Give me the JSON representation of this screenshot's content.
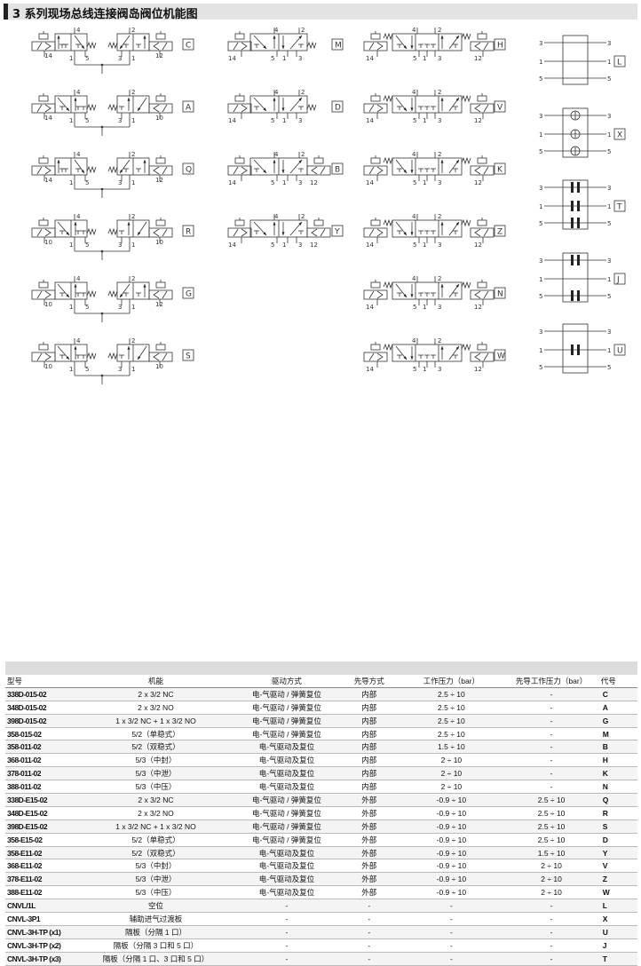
{
  "title": "3 系列现场总线连接阀岛阀位机能图",
  "diagrams": {
    "dual_3_2": [
      {
        "code": "C",
        "left_pilot": "14",
        "right_pilot": "12",
        "ports": [
          "4",
          "1",
          "5",
          "2",
          "3",
          "1"
        ]
      },
      {
        "code": "A",
        "left_pilot": "14",
        "right_pilot": "10",
        "ports": [
          "4",
          "1",
          "5",
          "2",
          "3",
          "1"
        ]
      },
      {
        "code": "Q",
        "left_pilot": "14",
        "right_pilot": "12",
        "ports": [
          "4",
          "1",
          "5",
          "2",
          "3",
          "1"
        ]
      },
      {
        "code": "R",
        "left_pilot": "10",
        "right_pilot": "10",
        "ports": [
          "4",
          "1",
          "5",
          "2",
          "3",
          "1"
        ]
      },
      {
        "code": "G",
        "left_pilot": "10",
        "right_pilot": "12",
        "ports": [
          "4",
          "1",
          "5",
          "2",
          "3",
          "1"
        ]
      },
      {
        "code": "S",
        "left_pilot": "10",
        "right_pilot": "10",
        "ports": [
          "4",
          "1",
          "5",
          "2",
          "3",
          "1"
        ]
      }
    ],
    "valve_5_2": [
      {
        "code": "M",
        "left_pilot": "14",
        "right_pilot": "",
        "ports": [
          "4",
          "2",
          "5",
          "1",
          "3"
        ]
      },
      {
        "code": "D",
        "left_pilot": "14",
        "right_pilot": "",
        "ports": [
          "4",
          "2",
          "5",
          "1",
          "3"
        ]
      },
      {
        "code": "B",
        "left_pilot": "14",
        "right_pilot": "12",
        "ports": [
          "4",
          "2",
          "5",
          "1",
          "3"
        ]
      },
      {
        "code": "Y",
        "left_pilot": "14",
        "right_pilot": "12",
        "ports": [
          "4",
          "2",
          "5",
          "1",
          "3"
        ]
      }
    ],
    "valve_5_3": [
      {
        "code": "H",
        "left_pilot": "14",
        "right_pilot": "12",
        "ports": [
          "4",
          "2",
          "5",
          "1",
          "3"
        ]
      },
      {
        "code": "V",
        "left_pilot": "14",
        "right_pilot": "12",
        "ports": [
          "4",
          "2",
          "5",
          "1",
          "3"
        ]
      },
      {
        "code": "K",
        "left_pilot": "14",
        "right_pilot": "12",
        "ports": [
          "4",
          "2",
          "5",
          "1",
          "3"
        ]
      },
      {
        "code": "Z",
        "left_pilot": "14",
        "right_pilot": "12",
        "ports": [
          "4",
          "2",
          "5",
          "1",
          "3"
        ]
      },
      {
        "code": "N",
        "left_pilot": "14",
        "right_pilot": "12",
        "ports": [
          "4",
          "2",
          "5",
          "1",
          "3"
        ]
      },
      {
        "code": "W",
        "left_pilot": "14",
        "right_pilot": "12",
        "ports": [
          "4",
          "2",
          "5",
          "1",
          "3"
        ]
      }
    ],
    "blocks": [
      {
        "code": "L",
        "ports": [
          "3",
          "1",
          "5"
        ],
        "plugs": [
          false,
          false,
          false
        ],
        "valves": false
      },
      {
        "code": "X",
        "ports": [
          "3",
          "1",
          "5"
        ],
        "plugs": [
          false,
          false,
          false
        ],
        "valves": true
      },
      {
        "code": "T",
        "ports": [
          "3",
          "1",
          "5"
        ],
        "plugs": [
          true,
          true,
          true
        ],
        "valves": false
      },
      {
        "code": "J",
        "ports": [
          "3",
          "1",
          "5"
        ],
        "plugs": [
          true,
          false,
          true
        ],
        "valves": false
      },
      {
        "code": "U",
        "ports": [
          "3",
          "1",
          "5"
        ],
        "plugs": [
          false,
          true,
          false
        ],
        "valves": false
      }
    ]
  },
  "table": {
    "headers": [
      "型号",
      "机能",
      "驱动方式",
      "先导方式",
      "工作压力（bar）",
      "先导工作压力（bar）",
      "代号"
    ],
    "rows": [
      [
        "338D-015-02",
        "2 x 3/2 NC",
        "电-气驱动 / 弹簧复位",
        "内部",
        "2.5 ÷ 10",
        "-",
        "C"
      ],
      [
        "348D-015-02",
        "2 x 3/2 NO",
        "电-气驱动 / 弹簧复位",
        "内部",
        "2.5 ÷ 10",
        "-",
        "A"
      ],
      [
        "398D-015-02",
        "1 x 3/2 NC + 1 x 3/2 NO",
        "电-气驱动 / 弹簧复位",
        "内部",
        "2.5 ÷ 10",
        "-",
        "G"
      ],
      [
        "358-015-02",
        "5/2（单稳式）",
        "电-气驱动 / 弹簧复位",
        "内部",
        "2.5 ÷ 10",
        "-",
        "M"
      ],
      [
        "358-011-02",
        "5/2（双稳式）",
        "电-气驱动及复位",
        "内部",
        "1.5 ÷ 10",
        "-",
        "B"
      ],
      [
        "368-011-02",
        "5/3（中封）",
        "电-气驱动及复位",
        "内部",
        "2 ÷ 10",
        "-",
        "H"
      ],
      [
        "378-011-02",
        "5/3（中泄）",
        "电-气驱动及复位",
        "内部",
        "2 ÷ 10",
        "-",
        "K"
      ],
      [
        "388-011-02",
        "5/3（中压）",
        "电-气驱动及复位",
        "内部",
        "2 ÷ 10",
        "-",
        "N"
      ],
      [
        "338D-E15-02",
        "2 x 3/2 NC",
        "电-气驱动 / 弹簧复位",
        "外部",
        "-0.9 ÷ 10",
        "2.5 ÷ 10",
        "Q"
      ],
      [
        "348D-E15-02",
        "2 x 3/2 NO",
        "电-气驱动 / 弹簧复位",
        "外部",
        "-0.9 ÷ 10",
        "2.5 ÷ 10",
        "R"
      ],
      [
        "398D-E15-02",
        "1 x 3/2 NC + 1 x 3/2 NO",
        "电-气驱动 / 弹簧复位",
        "外部",
        "-0.9 ÷ 10",
        "2.5 ÷ 10",
        "S"
      ],
      [
        "358-E15-02",
        "5/2（单稳式）",
        "电-气驱动 / 弹簧复位",
        "外部",
        "-0.9 ÷ 10",
        "2.5 ÷ 10",
        "D"
      ],
      [
        "358-E11-02",
        "5/2（双稳式）",
        "电-气驱动及复位",
        "外部",
        "-0.9 ÷ 10",
        "1.5 ÷ 10",
        "Y"
      ],
      [
        "368-E11-02",
        "5/3（中封）",
        "电-气驱动及复位",
        "外部",
        "-0.9 ÷ 10",
        "2 ÷ 10",
        "V"
      ],
      [
        "378-E11-02",
        "5/3（中泄）",
        "电-气驱动及复位",
        "外部",
        "-0.9 ÷ 10",
        "2 ÷ 10",
        "Z"
      ],
      [
        "388-E11-02",
        "5/3（中压）",
        "电-气驱动及复位",
        "外部",
        "-0.9 ÷ 10",
        "2 ÷ 10",
        "W"
      ],
      [
        "CNVL/1L",
        "空位",
        "-",
        "-",
        "-",
        "-",
        "L"
      ],
      [
        "CNVL-3P1",
        "辅助进气过渡板",
        "-",
        "-",
        "-",
        "-",
        "X"
      ],
      [
        "CNVL-3H-TP (x1)",
        "隔板（分隔 1 口）",
        "-",
        "-",
        "-",
        "-",
        "U"
      ],
      [
        "CNVL-3H-TP (x2)",
        "隔板（分隔 3 口和 5 口）",
        "-",
        "-",
        "-",
        "-",
        "J"
      ],
      [
        "CNVL-3H-TP (x3)",
        "隔板（分隔 1 口、3 口和 5 口）",
        "-",
        "-",
        "-",
        "-",
        "T"
      ]
    ]
  }
}
